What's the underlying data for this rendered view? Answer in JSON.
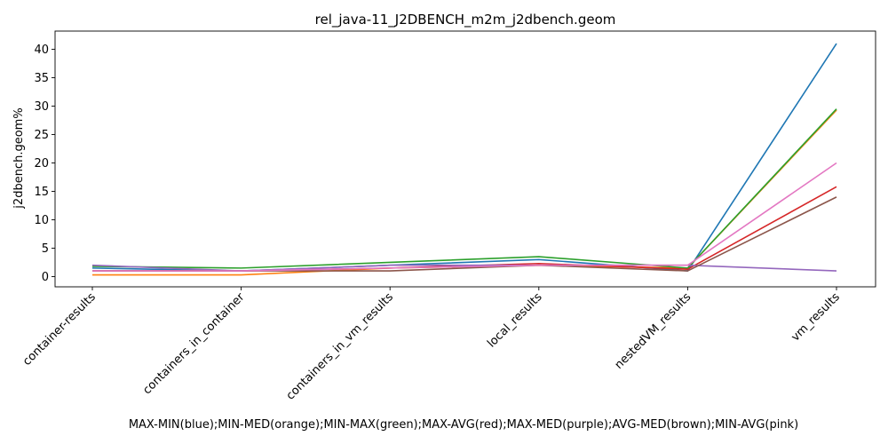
{
  "chart_data": {
    "type": "line",
    "title": "rel_java-11_J2DBENCH_m2m_j2dbench.geom",
    "xlabel": "MAX-MIN(blue);MIN-MED(orange);MIN-MAX(green);MAX-AVG(red);MAX-MED(purple);AVG-MED(brown);MIN-AVG(pink)",
    "ylabel": "j2dbench.geom%",
    "categories": [
      "container-results",
      "containers_in_container",
      "containers_in_vm_results",
      "local_results",
      "nestedVM_results",
      "vm_results"
    ],
    "ylim": [
      -1.8,
      43.2
    ],
    "yticks": [
      0,
      5,
      10,
      15,
      20,
      25,
      30,
      35,
      40
    ],
    "grid": false,
    "series": [
      {
        "color": "#1f77b4",
        "values": [
          1.5,
          1.0,
          2.0,
          3.0,
          1.0,
          41.0
        ]
      },
      {
        "color": "#ff7f0e",
        "values": [
          0.3,
          0.3,
          1.5,
          2.0,
          1.5,
          29.3
        ]
      },
      {
        "color": "#2ca02c",
        "values": [
          1.8,
          1.5,
          2.5,
          3.5,
          1.5,
          29.5
        ]
      },
      {
        "color": "#d62728",
        "values": [
          1.0,
          1.0,
          1.5,
          2.3,
          1.3,
          15.8
        ]
      },
      {
        "color": "#9467bd",
        "values": [
          2.0,
          1.0,
          2.0,
          2.0,
          2.0,
          1.0
        ]
      },
      {
        "color": "#8c564b",
        "values": [
          1.0,
          1.0,
          1.0,
          2.0,
          1.0,
          14.0
        ]
      },
      {
        "color": "#e377c2",
        "values": [
          1.0,
          1.0,
          1.5,
          2.0,
          2.0,
          20.0
        ]
      }
    ]
  }
}
